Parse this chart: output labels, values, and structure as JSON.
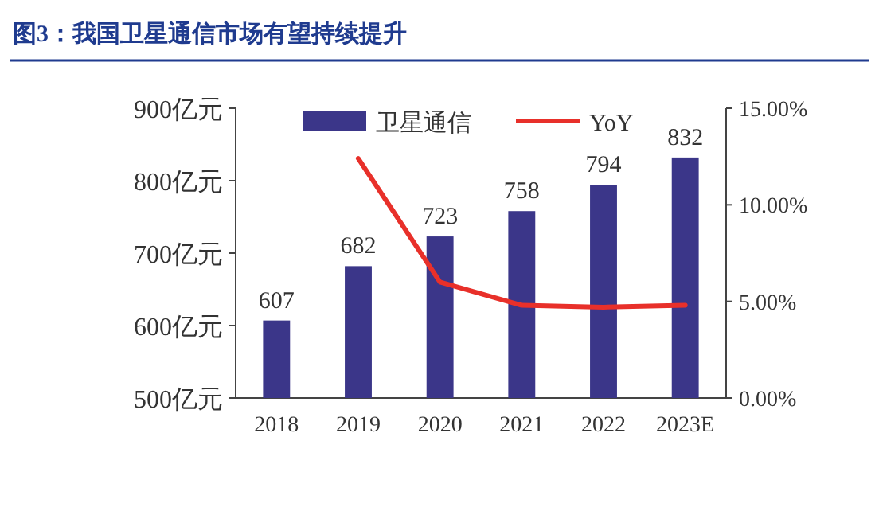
{
  "chart_data": {
    "type": "bar",
    "title": "图3：我国卫星通信市场有望持续提升",
    "categories": [
      "2018",
      "2019",
      "2020",
      "2021",
      "2022",
      "2023E"
    ],
    "series": [
      {
        "name": "卫星通信",
        "color": "#3b3689",
        "values": [
          607,
          682,
          723,
          758,
          794,
          832
        ],
        "value_labels": [
          "607",
          "682",
          "723",
          "758",
          "794",
          "832"
        ]
      },
      {
        "name": "YoY",
        "type": "line",
        "axis": "y2",
        "color": "#e8302a",
        "values": [
          null,
          12.4,
          6.0,
          4.8,
          4.7,
          4.8
        ]
      }
    ],
    "ylim": [
      500,
      900
    ],
    "yticks": [
      {
        "value": 500,
        "label": "500亿元"
      },
      {
        "value": 600,
        "label": "600亿元"
      },
      {
        "value": 700,
        "label": "700亿元"
      },
      {
        "value": 800,
        "label": "800亿元"
      },
      {
        "value": 900,
        "label": "900亿元"
      }
    ],
    "y2lim": [
      0,
      15
    ],
    "y2ticks": [
      {
        "value": 0,
        "label": "0.00%"
      },
      {
        "value": 5,
        "label": "5.00%"
      },
      {
        "value": 10,
        "label": "10.00%"
      },
      {
        "value": 15,
        "label": "15.00%"
      }
    ],
    "legend": "top",
    "grid": false
  }
}
